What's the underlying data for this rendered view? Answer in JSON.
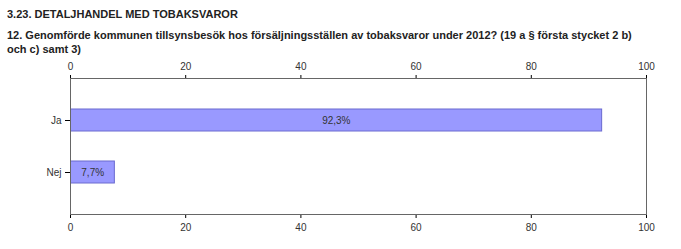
{
  "chart_data": {
    "type": "bar",
    "title": "3.23. DETALJHANDEL MED TOBAKSVAROR",
    "subtitle": "12. Genomförde kommunen tillsynsbesök hos försäljningsställen av tobaksvaror under 2012? (19 a § första stycket 2 b) och c) samt 3)",
    "categories": [
      "Ja",
      "Nej"
    ],
    "values": [
      92.3,
      7.7
    ],
    "value_labels": [
      "92,3%",
      "7,7%"
    ],
    "color": "#9999ff",
    "orientation": "horizontal",
    "data_labels": true,
    "grid": false,
    "xlim": [
      0,
      100
    ],
    "xticks": [
      0,
      20,
      40,
      60,
      80,
      100
    ]
  }
}
